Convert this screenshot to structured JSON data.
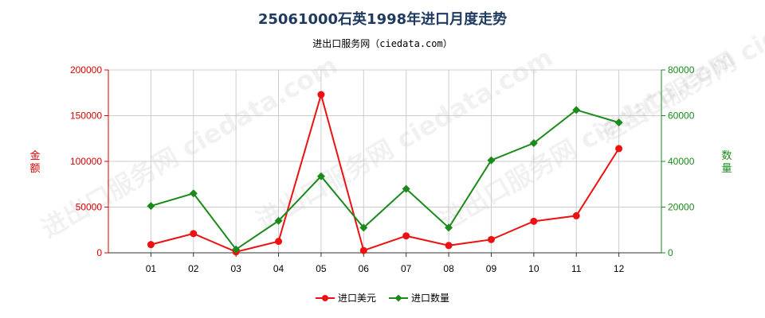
{
  "title": "25061000石英1998年进口月度走势",
  "subtitle": "进出口服务网（ciedata.com）",
  "watermark": "进出口服务网 ciedata.com",
  "chart_data": {
    "type": "line",
    "categories": [
      "01",
      "02",
      "03",
      "04",
      "05",
      "06",
      "07",
      "08",
      "09",
      "10",
      "11",
      "12"
    ],
    "left_axis": {
      "label": "金额",
      "ticks": [
        "0",
        "50000",
        "100000",
        "150000",
        "200000"
      ],
      "range": [
        0,
        200000
      ],
      "color": "#dd0000"
    },
    "right_axis": {
      "label": "数量",
      "ticks": [
        "0",
        "20000",
        "40000",
        "60000",
        "80000"
      ],
      "range": [
        0,
        80000
      ],
      "color": "#1a8a1a"
    },
    "grid": true,
    "legend_position": "bottom-center",
    "series": [
      {
        "name": "进口美元",
        "axis": "left",
        "color": "#ee1111",
        "marker": "circle",
        "values": [
          9000,
          21000,
          1000,
          12500,
          173000,
          2500,
          18500,
          8000,
          14500,
          34500,
          40500,
          114000
        ]
      },
      {
        "name": "进口数量",
        "axis": "right",
        "color": "#1a8a1a",
        "marker": "diamond",
        "values": [
          20500,
          26000,
          1500,
          14000,
          33500,
          11000,
          28000,
          11000,
          40500,
          48000,
          62500,
          57000
        ]
      }
    ]
  }
}
